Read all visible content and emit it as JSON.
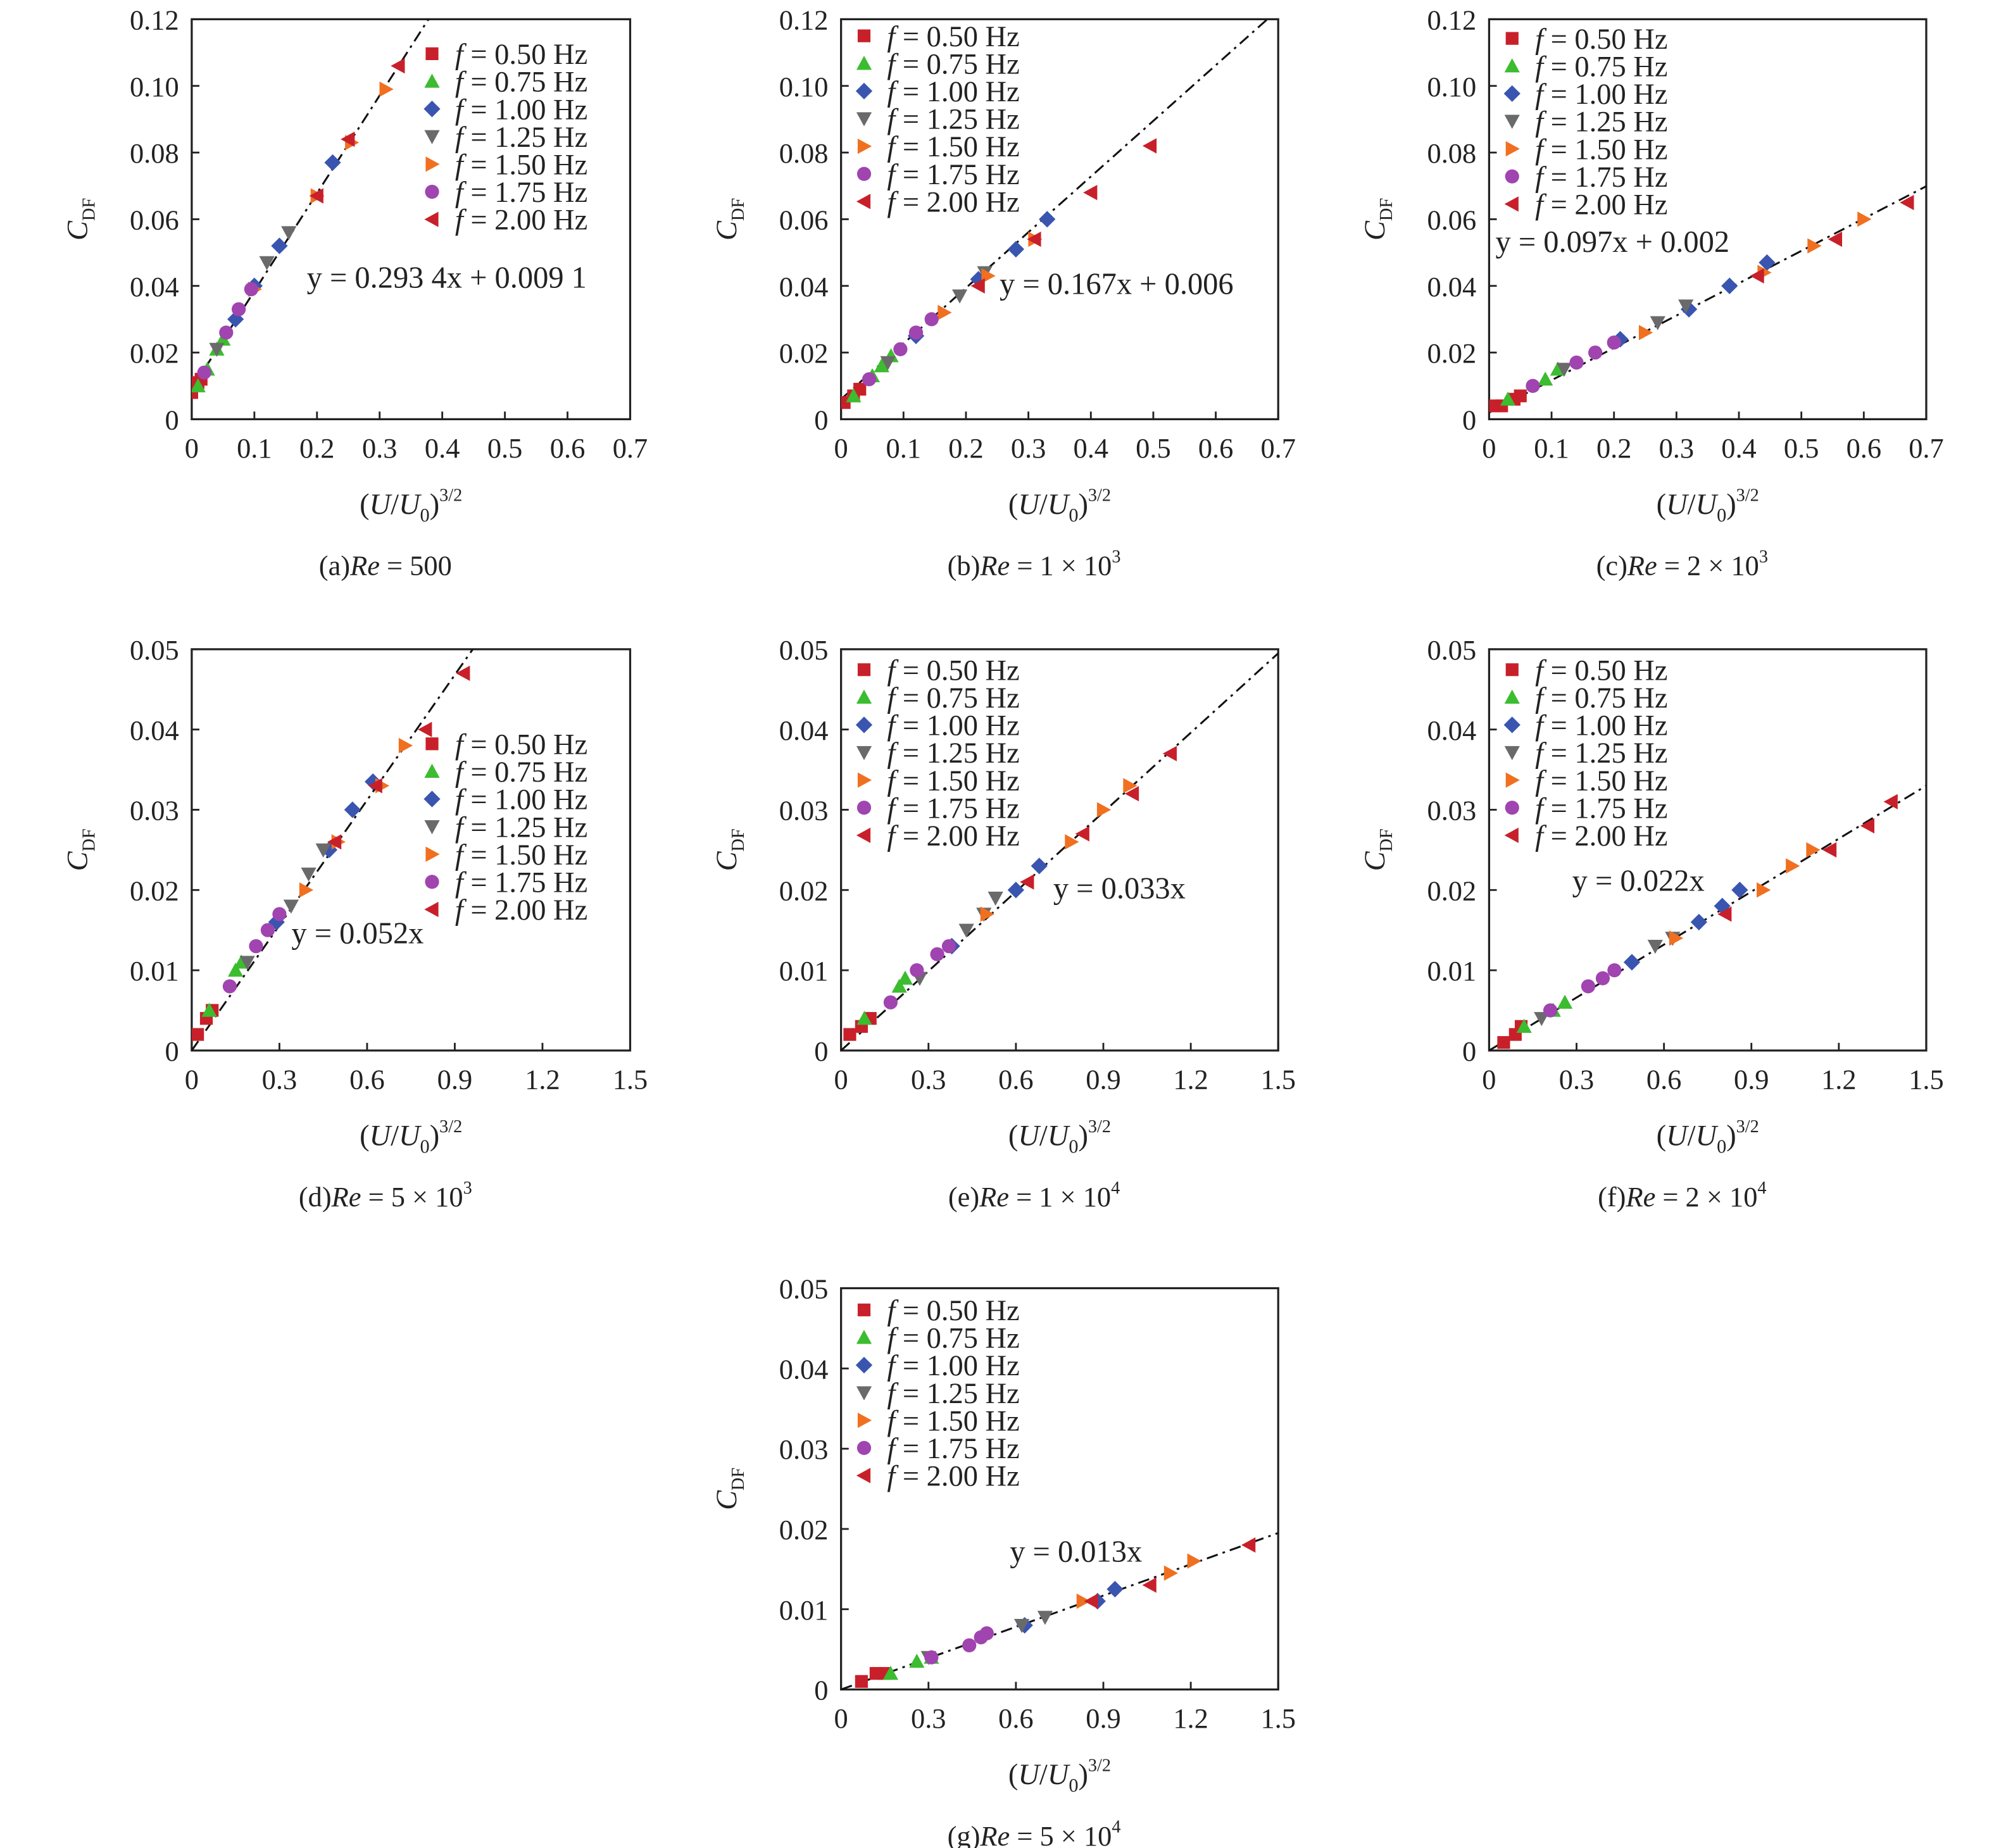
{
  "series_styles": [
    {
      "name": "f = 0.50 Hz",
      "marker": "square",
      "color": "#c8202a"
    },
    {
      "name": "f = 0.75 Hz",
      "marker": "triangle-up",
      "color": "#3cbc2f"
    },
    {
      "name": "f = 1.00 Hz",
      "marker": "diamond",
      "color": "#3a55b0"
    },
    {
      "name": "f = 1.25 Hz",
      "marker": "triangle-down",
      "color": "#6a6a6a"
    },
    {
      "name": "f = 1.50 Hz",
      "marker": "triangle-right",
      "color": "#f07020"
    },
    {
      "name": "f = 1.75 Hz",
      "marker": "circle",
      "color": "#a044b0"
    },
    {
      "name": "f = 2.00 Hz",
      "marker": "triangle-left",
      "color": "#c8202a"
    }
  ],
  "fit_line_style": {
    "color": "#111",
    "dash": "dash-dot"
  },
  "chart_data": [
    {
      "type": "scatter",
      "caption": {
        "label": "(a)",
        "var": "Re",
        "text": " = 500",
        "exp": ""
      },
      "xlabel": {
        "open": "(",
        "var": "U",
        "slash": "/",
        "var2": "U",
        "sub": "0",
        "close": ")",
        "sup": "3/2"
      },
      "ylabel": {
        "main": "C",
        "sub": "DF"
      },
      "xlim": [
        0,
        0.7
      ],
      "ylim": [
        0,
        0.12
      ],
      "xticks": [
        "0",
        "0.1",
        "0.2",
        "0.3",
        "0.4",
        "0.5",
        "0.6",
        "0.7"
      ],
      "yticks": [
        "0",
        "0.02",
        "0.04",
        "0.06",
        "0.08",
        "0.10",
        "0.12"
      ],
      "legend": "top-right",
      "fit": {
        "label": "y = 0.293 4x + 0.009 1",
        "slope": 0.2934,
        "intercept": 0.0091
      },
      "series": [
        [
          [
            0,
            0.008
          ],
          [
            0.01,
            0.011
          ],
          [
            0.015,
            0.012
          ]
        ],
        [
          [
            0.01,
            0.01
          ],
          [
            0.025,
            0.015
          ],
          [
            0.04,
            0.021
          ],
          [
            0.05,
            0.024
          ]
        ],
        [
          [
            0.07,
            0.03
          ],
          [
            0.1,
            0.04
          ],
          [
            0.14,
            0.052
          ],
          [
            0.225,
            0.077
          ]
        ],
        [
          [
            0.04,
            0.021
          ],
          [
            0.12,
            0.047
          ],
          [
            0.155,
            0.056
          ]
        ],
        [
          [
            0.1,
            0.039
          ],
          [
            0.2,
            0.067
          ],
          [
            0.255,
            0.083
          ],
          [
            0.31,
            0.099
          ]
        ],
        [
          [
            0.02,
            0.014
          ],
          [
            0.055,
            0.026
          ],
          [
            0.075,
            0.033
          ],
          [
            0.095,
            0.039
          ]
        ],
        [
          [
            0.2,
            0.067
          ],
          [
            0.25,
            0.084
          ],
          [
            0.33,
            0.106
          ]
        ]
      ]
    },
    {
      "type": "scatter",
      "caption": {
        "label": "(b)",
        "var": "Re",
        "text": " = 1 × 10",
        "exp": "3"
      },
      "xlabel": {
        "open": "(",
        "var": "U",
        "slash": "/",
        "var2": "U",
        "sub": "0",
        "close": ")",
        "sup": "3/2"
      },
      "ylabel": {
        "main": "C",
        "sub": "DF"
      },
      "xlim": [
        0,
        0.7
      ],
      "ylim": [
        0,
        0.12
      ],
      "xticks": [
        "0",
        "0.1",
        "0.2",
        "0.3",
        "0.4",
        "0.5",
        "0.6",
        "0.7"
      ],
      "yticks": [
        "0",
        "0.02",
        "0.04",
        "0.06",
        "0.08",
        "0.10",
        "0.12"
      ],
      "legend": "top-left",
      "fit": {
        "label": "y = 0.167x + 0.006",
        "slope": 0.167,
        "intercept": 0.006
      },
      "series": [
        [
          [
            0.005,
            0.005
          ],
          [
            0.02,
            0.007
          ],
          [
            0.03,
            0.009
          ]
        ],
        [
          [
            0.02,
            0.007
          ],
          [
            0.05,
            0.013
          ],
          [
            0.065,
            0.016
          ],
          [
            0.08,
            0.019
          ]
        ],
        [
          [
            0.12,
            0.025
          ],
          [
            0.22,
            0.042
          ],
          [
            0.28,
            0.051
          ],
          [
            0.33,
            0.06
          ]
        ],
        [
          [
            0.075,
            0.017
          ],
          [
            0.19,
            0.037
          ],
          [
            0.23,
            0.044
          ]
        ],
        [
          [
            0.165,
            0.032
          ],
          [
            0.235,
            0.043
          ],
          [
            0.31,
            0.054
          ]
        ],
        [
          [
            0.045,
            0.012
          ],
          [
            0.095,
            0.021
          ],
          [
            0.12,
            0.026
          ],
          [
            0.145,
            0.03
          ]
        ],
        [
          [
            0.22,
            0.04
          ],
          [
            0.31,
            0.054
          ],
          [
            0.4,
            0.068
          ],
          [
            0.495,
            0.082
          ]
        ]
      ]
    },
    {
      "type": "scatter",
      "caption": {
        "label": "(c)",
        "var": "Re",
        "text": " = 2 × 10",
        "exp": "3"
      },
      "xlabel": {
        "open": "(",
        "var": "U",
        "slash": "/",
        "var2": "U",
        "sub": "0",
        "close": ")",
        "sup": "3/2"
      },
      "ylabel": {
        "main": "C",
        "sub": "DF"
      },
      "xlim": [
        0,
        0.7
      ],
      "ylim": [
        0,
        0.12
      ],
      "xticks": [
        "0",
        "0.1",
        "0.2",
        "0.3",
        "0.4",
        "0.5",
        "0.6",
        "0.7"
      ],
      "yticks": [
        "0",
        "0.02",
        "0.04",
        "0.06",
        "0.08",
        "0.10",
        "0.12"
      ],
      "legend": "top-left",
      "fit": {
        "label": "y = 0.097x + 0.002",
        "slope": 0.097,
        "intercept": 0.002
      },
      "series": [
        [
          [
            0.01,
            0.004
          ],
          [
            0.02,
            0.004
          ],
          [
            0.04,
            0.006
          ],
          [
            0.05,
            0.007
          ]
        ],
        [
          [
            0.03,
            0.006
          ],
          [
            0.09,
            0.012
          ],
          [
            0.11,
            0.015
          ]
        ],
        [
          [
            0.21,
            0.024
          ],
          [
            0.32,
            0.033
          ],
          [
            0.385,
            0.04
          ],
          [
            0.445,
            0.047
          ]
        ],
        [
          [
            0.12,
            0.015
          ],
          [
            0.27,
            0.029
          ],
          [
            0.315,
            0.034
          ]
        ],
        [
          [
            0.25,
            0.026
          ],
          [
            0.44,
            0.044
          ],
          [
            0.52,
            0.052
          ],
          [
            0.6,
            0.06
          ]
        ],
        [
          [
            0.07,
            0.01
          ],
          [
            0.14,
            0.017
          ],
          [
            0.17,
            0.02
          ],
          [
            0.2,
            0.023
          ]
        ],
        [
          [
            0.43,
            0.043
          ],
          [
            0.555,
            0.054
          ],
          [
            0.67,
            0.065
          ]
        ]
      ]
    },
    {
      "type": "scatter",
      "caption": {
        "label": "(d)",
        "var": "Re",
        "text": " = 5 × 10",
        "exp": "3"
      },
      "xlabel": {
        "open": "(",
        "var": "U",
        "slash": "/",
        "var2": "U",
        "sub": "0",
        "close": ")",
        "sup": "3/2"
      },
      "ylabel": {
        "main": "C",
        "sub": "DF"
      },
      "xlim": [
        0,
        1.5
      ],
      "ylim": [
        0,
        0.05
      ],
      "xticks": [
        "0",
        "0.3",
        "0.6",
        "0.9",
        "1.2",
        "1.5"
      ],
      "yticks": [
        "0",
        "0.01",
        "0.02",
        "0.03",
        "0.04",
        "0.05"
      ],
      "legend": "right",
      "fit": {
        "label": "y = 0.052x",
        "slope": 0.052,
        "intercept": 0
      },
      "series": [
        [
          [
            0.02,
            0.002
          ],
          [
            0.05,
            0.004
          ],
          [
            0.07,
            0.005
          ]
        ],
        [
          [
            0.06,
            0.005
          ],
          [
            0.15,
            0.01
          ],
          [
            0.17,
            0.011
          ]
        ],
        [
          [
            0.29,
            0.016
          ],
          [
            0.47,
            0.025
          ],
          [
            0.55,
            0.03
          ],
          [
            0.62,
            0.0335
          ]
        ],
        [
          [
            0.19,
            0.011
          ],
          [
            0.34,
            0.018
          ],
          [
            0.4,
            0.022
          ],
          [
            0.45,
            0.025
          ]
        ],
        [
          [
            0.39,
            0.02
          ],
          [
            0.5,
            0.026
          ],
          [
            0.65,
            0.033
          ],
          [
            0.73,
            0.038
          ]
        ],
        [
          [
            0.13,
            0.008
          ],
          [
            0.22,
            0.013
          ],
          [
            0.26,
            0.015
          ],
          [
            0.3,
            0.017
          ]
        ],
        [
          [
            0.49,
            0.026
          ],
          [
            0.63,
            0.033
          ],
          [
            0.8,
            0.04
          ],
          [
            0.93,
            0.047
          ]
        ]
      ]
    },
    {
      "type": "scatter",
      "caption": {
        "label": "(e)",
        "var": "Re",
        "text": " = 1 × 10",
        "exp": "4"
      },
      "xlabel": {
        "open": "(",
        "var": "U",
        "slash": "/",
        "var2": "U",
        "sub": "0",
        "close": ")",
        "sup": "3/2"
      },
      "ylabel": {
        "main": "C",
        "sub": "DF"
      },
      "xlim": [
        0,
        1.5
      ],
      "ylim": [
        0,
        0.05
      ],
      "xticks": [
        "0",
        "0.3",
        "0.6",
        "0.9",
        "1.2",
        "1.5"
      ],
      "yticks": [
        "0",
        "0.01",
        "0.02",
        "0.03",
        "0.04",
        "0.05"
      ],
      "legend": "top-left",
      "fit": {
        "label": "y = 0.033x",
        "slope": 0.033,
        "intercept": 0
      },
      "series": [
        [
          [
            0.03,
            0.002
          ],
          [
            0.07,
            0.003
          ],
          [
            0.1,
            0.004
          ]
        ],
        [
          [
            0.08,
            0.004
          ],
          [
            0.2,
            0.008
          ],
          [
            0.22,
            0.009
          ]
        ],
        [
          [
            0.38,
            0.013
          ],
          [
            0.6,
            0.02
          ],
          [
            0.68,
            0.023
          ]
        ],
        [
          [
            0.27,
            0.009
          ],
          [
            0.43,
            0.015
          ],
          [
            0.49,
            0.017
          ],
          [
            0.53,
            0.019
          ]
        ],
        [
          [
            0.5,
            0.017
          ],
          [
            0.79,
            0.026
          ],
          [
            0.9,
            0.03
          ],
          [
            0.99,
            0.033
          ]
        ],
        [
          [
            0.17,
            0.006
          ],
          [
            0.26,
            0.01
          ],
          [
            0.33,
            0.012
          ],
          [
            0.37,
            0.013
          ]
        ],
        [
          [
            0.64,
            0.021
          ],
          [
            0.83,
            0.027
          ],
          [
            1.0,
            0.032
          ],
          [
            1.13,
            0.037
          ]
        ]
      ]
    },
    {
      "type": "scatter",
      "caption": {
        "label": "(f)",
        "var": "Re",
        "text": " = 2 × 10",
        "exp": "4"
      },
      "xlabel": {
        "open": "(",
        "var": "U",
        "slash": "/",
        "var2": "U",
        "sub": "0",
        "close": ")",
        "sup": "3/2"
      },
      "ylabel": {
        "main": "C",
        "sub": "DF"
      },
      "xlim": [
        0,
        1.5
      ],
      "ylim": [
        0,
        0.05
      ],
      "xticks": [
        "0",
        "0.3",
        "0.6",
        "0.9",
        "1.2",
        "1.5"
      ],
      "yticks": [
        "0",
        "0.01",
        "0.02",
        "0.03",
        "0.04",
        "0.05"
      ],
      "legend": "top-left",
      "fit": {
        "label": "y = 0.022x",
        "slope": 0.022,
        "intercept": 0
      },
      "series": [
        [
          [
            0.05,
            0.001
          ],
          [
            0.09,
            0.002
          ],
          [
            0.11,
            0.003
          ]
        ],
        [
          [
            0.12,
            0.003
          ],
          [
            0.22,
            0.005
          ],
          [
            0.26,
            0.006
          ]
        ],
        [
          [
            0.49,
            0.011
          ],
          [
            0.72,
            0.016
          ],
          [
            0.8,
            0.018
          ],
          [
            0.86,
            0.02
          ]
        ],
        [
          [
            0.18,
            0.004
          ],
          [
            0.57,
            0.013
          ],
          [
            0.63,
            0.014
          ]
        ],
        [
          [
            0.64,
            0.014
          ],
          [
            0.94,
            0.02
          ],
          [
            1.04,
            0.023
          ],
          [
            1.11,
            0.025
          ]
        ],
        [
          [
            0.21,
            0.005
          ],
          [
            0.34,
            0.008
          ],
          [
            0.39,
            0.009
          ],
          [
            0.43,
            0.01
          ]
        ],
        [
          [
            0.81,
            0.017
          ],
          [
            1.17,
            0.025
          ],
          [
            1.3,
            0.028
          ],
          [
            1.38,
            0.031
          ]
        ]
      ]
    },
    {
      "type": "scatter",
      "caption": {
        "label": "(g)",
        "var": "Re",
        "text": " = 5 × 10",
        "exp": "4"
      },
      "xlabel": {
        "open": "(",
        "var": "U",
        "slash": "/",
        "var2": "U",
        "sub": "0",
        "close": ")",
        "sup": "3/2"
      },
      "ylabel": {
        "main": "C",
        "sub": "DF"
      },
      "xlim": [
        0,
        1.5
      ],
      "ylim": [
        0,
        0.05
      ],
      "xticks": [
        "0",
        "0.3",
        "0.6",
        "0.9",
        "1.2",
        "1.5"
      ],
      "yticks": [
        "0",
        "0.01",
        "0.02",
        "0.03",
        "0.04",
        "0.05"
      ],
      "legend": "top-left",
      "fit": {
        "label": "y = 0.013x",
        "slope": 0.013,
        "intercept": 0
      },
      "series": [
        [
          [
            0.07,
            0.001
          ],
          [
            0.12,
            0.002
          ],
          [
            0.15,
            0.002
          ]
        ],
        [
          [
            0.17,
            0.002
          ],
          [
            0.26,
            0.0035
          ],
          [
            0.31,
            0.004
          ]
        ],
        [
          [
            0.63,
            0.008
          ],
          [
            0.88,
            0.011
          ],
          [
            0.94,
            0.0125
          ]
        ],
        [
          [
            0.3,
            0.004
          ],
          [
            0.62,
            0.008
          ],
          [
            0.7,
            0.009
          ]
        ],
        [
          [
            0.83,
            0.011
          ],
          [
            1.13,
            0.0145
          ],
          [
            1.21,
            0.016
          ]
        ],
        [
          [
            0.31,
            0.004
          ],
          [
            0.44,
            0.0055
          ],
          [
            0.48,
            0.0065
          ],
          [
            0.5,
            0.007
          ]
        ],
        [
          [
            0.86,
            0.011
          ],
          [
            1.06,
            0.013
          ],
          [
            1.4,
            0.018
          ]
        ]
      ]
    }
  ]
}
